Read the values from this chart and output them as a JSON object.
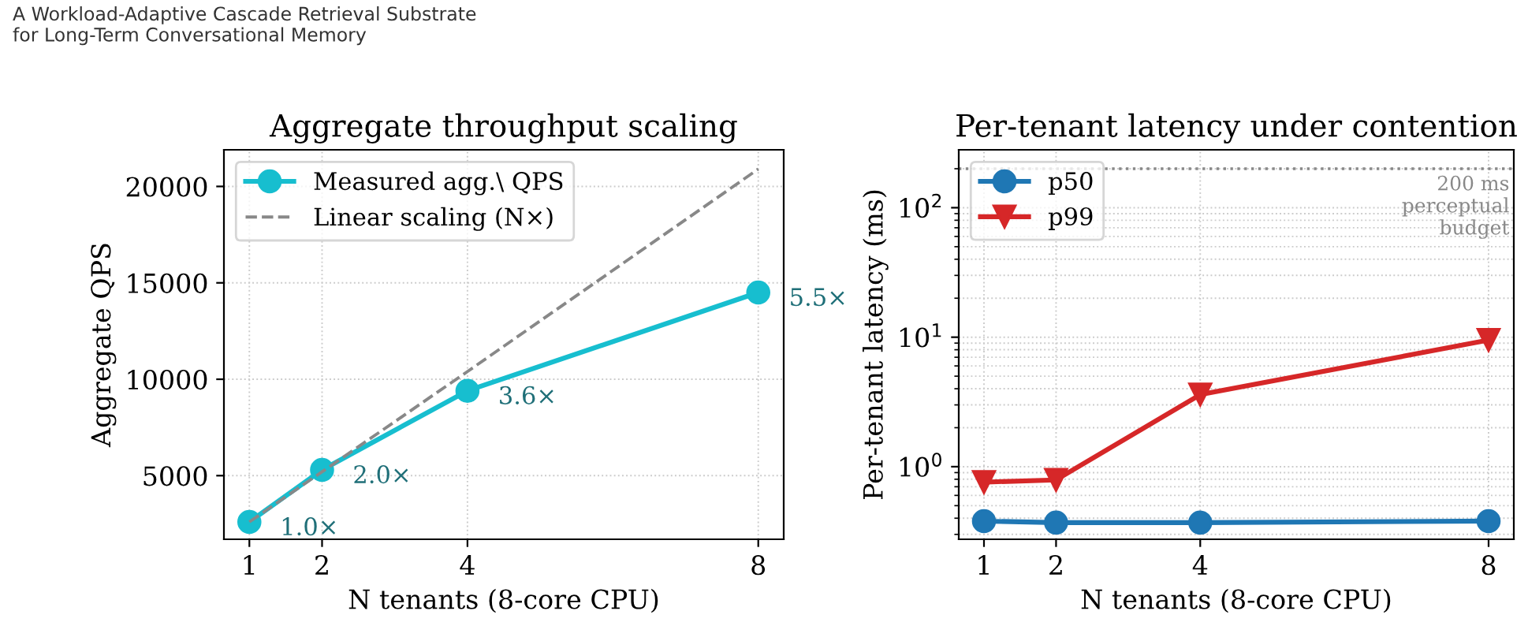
{
  "chart_data": [
    {
      "type": "line",
      "title": "Aggregate throughput scaling",
      "xlabel": "N tenants (8-core CPU)",
      "ylabel": "Aggregate QPS",
      "annotations": [
        "A Workload-Adaptive Cascade Retrieval Substrate\nfor Long-Term Conversational Memory",
        {
          "text": "1.0×",
          "x": 1,
          "y": 2600
        },
        {
          "text": "2.0×",
          "x": 2,
          "y": 5300
        },
        {
          "text": "3.6×",
          "x": 4,
          "y": 9400
        },
        {
          "text": "5.5×",
          "x": 8,
          "y": 14500
        }
      ],
      "x": [
        1,
        2,
        4,
        8
      ],
      "xlim": [
        0.65,
        8.35
      ],
      "xticks": [
        1,
        2,
        4,
        8
      ],
      "ylim": [
        1700,
        21900
      ],
      "yticks": [
        5000,
        10000,
        15000,
        20000
      ],
      "grid": true,
      "legend": "top left",
      "series": [
        {
          "name": "Measured agg.\\ QPS",
          "color": "#17becf",
          "values": [
            2600,
            5300,
            9400,
            14500
          ],
          "marker": "circle",
          "line_style": "solid"
        },
        {
          "name": "Linear scaling (N×)",
          "color": "#888888",
          "values": [
            2600,
            5200,
            10400,
            20900
          ],
          "marker": "none",
          "line_style": "dashed"
        }
      ]
    },
    {
      "type": "line",
      "title": "Per-tenant latency under contention",
      "xlabel": "N tenants (8-core CPU)",
      "ylabel": "Per-tenant latency (ms)",
      "x": [
        1,
        2,
        4,
        8
      ],
      "xlim": [
        0.65,
        8.35
      ],
      "xticks": [
        1,
        2,
        4,
        8
      ],
      "log": "y",
      "ylim": [
        0.275,
        280
      ],
      "yticks": [
        {
          "value": 1,
          "label": "10$^{0}$"
        },
        {
          "value": 10,
          "label": "10$^{1}$"
        },
        {
          "value": 100,
          "label": "10$^{2}$"
        }
      ],
      "grid": true,
      "legend": "top left",
      "ref_lines": [
        {
          "axis": "y",
          "value": 200,
          "label": "200 ms\nperceptual\nbudget",
          "color": "#888888",
          "line_style": "dotted"
        }
      ],
      "series": [
        {
          "name": "p50",
          "color": "#1f77b4",
          "values": [
            0.38,
            0.37,
            0.37,
            0.38
          ],
          "marker": "circle",
          "line_style": "solid"
        },
        {
          "name": "p99",
          "color": "#d62728",
          "values": [
            0.76,
            0.79,
            3.6,
            9.5
          ],
          "marker": "triangle",
          "line_style": "solid"
        }
      ]
    }
  ]
}
